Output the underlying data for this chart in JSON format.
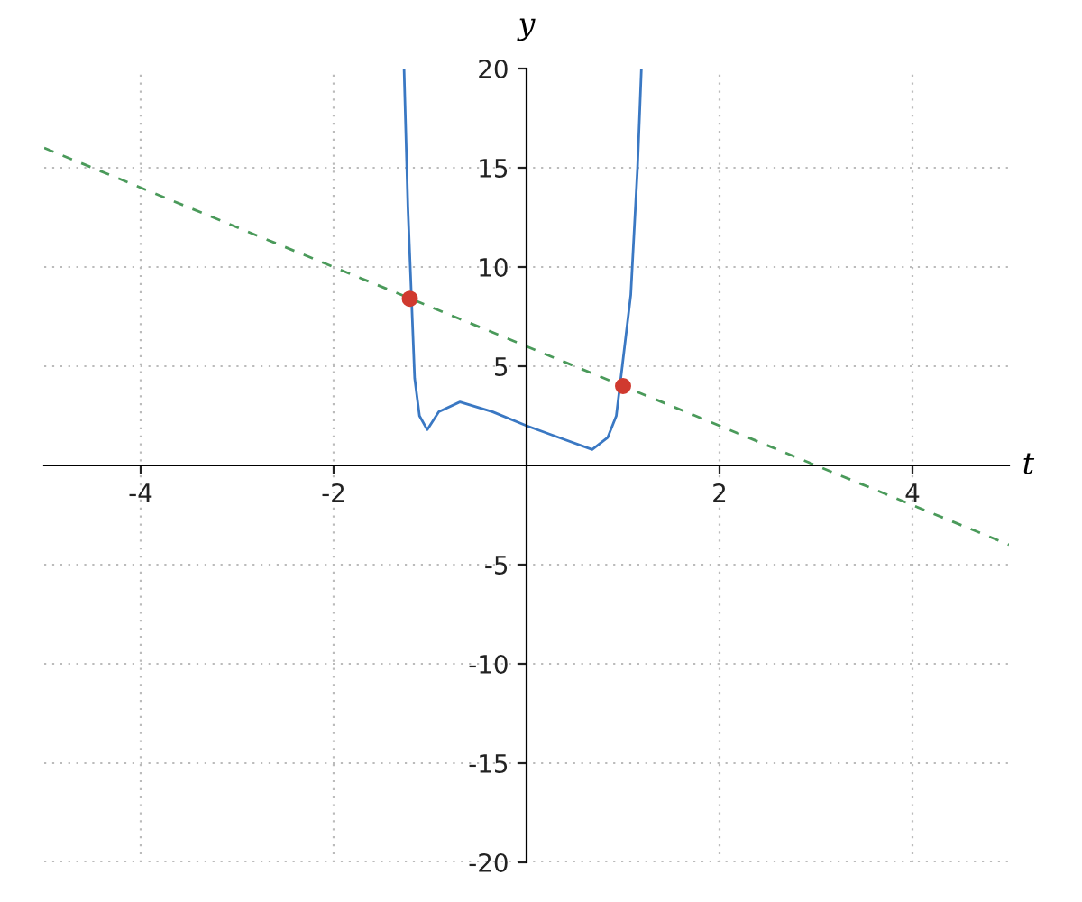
{
  "chart_data": {
    "type": "line",
    "xlabel": "t",
    "ylabel": "y",
    "xlim": [
      -5,
      5
    ],
    "ylim": [
      -20,
      20
    ],
    "xticks": [
      -4,
      -2,
      2,
      4
    ],
    "yticks": [
      -20,
      -15,
      -10,
      -5,
      5,
      10,
      15,
      20
    ],
    "grid": true,
    "series": [
      {
        "color": "#3a78c3",
        "line_style": "solid",
        "x": [
          -1.27,
          -1.23,
          -1.16,
          -1.11,
          -1.03,
          -0.91,
          -0.69,
          -0.35,
          0,
          0.34,
          0.68,
          0.84,
          0.93,
          1.08,
          1.15,
          1.19
        ],
        "values": [
          20,
          13,
          4.4,
          2.5,
          1.8,
          2.7,
          3.2,
          2.7,
          2.0,
          1.4,
          0.8,
          1.4,
          2.5,
          8.6,
          15,
          20
        ]
      },
      {
        "type": "line",
        "color": "#4a9a5a",
        "line_style": "dashed",
        "x": [
          -5,
          5
        ],
        "values": [
          16,
          -4
        ]
      },
      {
        "type": "scatter",
        "color": "#d03a2f",
        "marker": "circle",
        "x": [
          -1.21,
          1.0
        ],
        "values": [
          8.4,
          4.0
        ]
      }
    ]
  }
}
